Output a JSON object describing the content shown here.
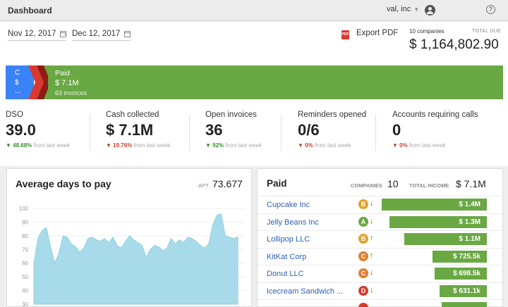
{
  "header": {
    "title": "Dashboard",
    "account": "val, inc",
    "help": "?"
  },
  "dates": {
    "start": "Nov 12, 2017",
    "separator": "-",
    "end": "Dec 12, 2017"
  },
  "export": {
    "icon_text": "PDF",
    "label": "Export PDF"
  },
  "totals": {
    "companies": "10 companies",
    "label": "TOTAL DUE",
    "value": "$ 1,164,802.90"
  },
  "pipeline": {
    "first": {
      "name": "C",
      "amount": "$",
      "count": "..."
    },
    "paid": {
      "name": "Paid",
      "amount": "$ 7.1M",
      "count": "63 invoices"
    },
    "colors": {
      "blue": "#3b82f6",
      "red": "#d9392f",
      "darkred": "#8e1c16",
      "green": "#6aa843"
    }
  },
  "kpis": [
    {
      "label": "DSO",
      "value": "39.0",
      "arrow": "▼",
      "dir": "up",
      "change": "48.68%",
      "suffix": "from last week"
    },
    {
      "label": "Cash collected",
      "value": "$ 7.1M",
      "arrow": "▼",
      "dir": "down",
      "change": "19.76%",
      "suffix": "from last week"
    },
    {
      "label": "Open invoices",
      "value": "36",
      "arrow": "▼",
      "dir": "up",
      "change": "92%",
      "suffix": "from last week"
    },
    {
      "label": "Reminders opened",
      "value": "0/6",
      "arrow": "▼",
      "dir": "down",
      "change": "0%",
      "suffix": "from last week"
    },
    {
      "label": "Accounts requiring calls",
      "value": "0",
      "arrow": "▼",
      "dir": "down",
      "change": "0%",
      "suffix": "from last week"
    }
  ],
  "avg_days": {
    "title": "Average days to pay",
    "apt_label": "APT",
    "apt_value": "73.677"
  },
  "chart_data": {
    "type": "area",
    "ylim": [
      30,
      100
    ],
    "yticks": [
      "100",
      "90",
      "80",
      "70",
      "60",
      "50",
      "40",
      "30"
    ],
    "values": [
      60,
      78,
      84,
      86,
      72,
      60,
      67,
      80,
      79,
      74,
      72,
      68,
      71,
      78,
      79,
      77,
      76,
      78,
      75,
      79,
      73,
      71,
      76,
      80,
      77,
      75,
      73,
      64,
      70,
      73,
      72,
      69,
      71,
      78,
      74,
      77,
      75,
      79,
      78,
      76,
      73,
      71,
      74,
      88,
      95,
      96,
      80,
      79,
      78,
      79
    ],
    "color": "#a8dbea"
  },
  "paid_table": {
    "title": "Paid",
    "companies_label": "COMPANIES",
    "companies_value": "10",
    "income_label": "TOTAL INCOME",
    "income_value": "$ 7.1M",
    "rows": [
      {
        "name": "Cupcake Inc",
        "grade": "B",
        "grade_color": "#e0a325",
        "arrow": "↓",
        "dir": "down",
        "amount": "$ 1.4M",
        "value": 1.4
      },
      {
        "name": "Jelly Beans Inc",
        "grade": "A",
        "grade_color": "#6aa843",
        "arrow": "↓",
        "dir": "down",
        "amount": "$ 1.3M",
        "value": 1.3
      },
      {
        "name": "Lollipop LLC",
        "grade": "B",
        "grade_color": "#e0a325",
        "arrow": "↑",
        "dir": "up",
        "amount": "$ 1.1M",
        "value": 1.1
      },
      {
        "name": "KitKat Corp",
        "grade": "C",
        "grade_color": "#e07f2a",
        "arrow": "↑",
        "dir": "up",
        "amount": "$ 725.5k",
        "value": 0.7255
      },
      {
        "name": "Donut LLC",
        "grade": "C",
        "grade_color": "#e07f2a",
        "arrow": "↓",
        "dir": "down",
        "amount": "$ 698.5k",
        "value": 0.6985
      },
      {
        "name": "Icecream Sandwich ...",
        "grade": "D",
        "grade_color": "#d9392f",
        "arrow": "↓",
        "dir": "down",
        "amount": "$ 631.1k",
        "value": 0.6311
      },
      {
        "name": "",
        "grade": "",
        "grade_color": "#d9392f",
        "arrow": "",
        "dir": "down",
        "amount": "",
        "value": 0.6
      }
    ]
  }
}
